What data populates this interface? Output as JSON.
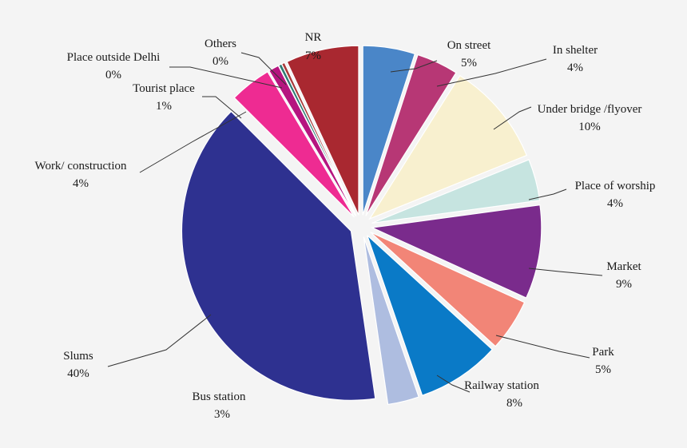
{
  "chart_data": {
    "type": "pie",
    "title": "",
    "slices": [
      {
        "name": "On street",
        "percent_label": "5%",
        "value": 5,
        "color": "#4a86c8"
      },
      {
        "name": "In shelter",
        "percent_label": "4%",
        "value": 4,
        "color": "#b73775"
      },
      {
        "name": "Under bridge /flyover",
        "percent_label": "10%",
        "value": 10,
        "color": "#f8f0cf"
      },
      {
        "name": "Place of worship",
        "percent_label": "4%",
        "value": 4,
        "color": "#c6e4e0"
      },
      {
        "name": "Market",
        "percent_label": "9%",
        "value": 9,
        "color": "#7a2b8c"
      },
      {
        "name": "Park",
        "percent_label": "5%",
        "value": 5,
        "color": "#f28577"
      },
      {
        "name": "Railway station",
        "percent_label": "8%",
        "value": 8,
        "color": "#0a7ac7"
      },
      {
        "name": "Bus station",
        "percent_label": "3%",
        "value": 3,
        "color": "#aebde0"
      },
      {
        "name": "Slums",
        "percent_label": "40%",
        "value": 40,
        "color": "#2e3190"
      },
      {
        "name": "Work/ construction",
        "percent_label": "4%",
        "value": 4,
        "color": "#ee2b92"
      },
      {
        "name": "Tourist place",
        "percent_label": "1%",
        "value": 1,
        "color": "#b5157f"
      },
      {
        "name": "Place outside Delhi",
        "percent_label": "0%",
        "value": 0.3,
        "color": "#2e7b73"
      },
      {
        "name": "Others",
        "percent_label": "0%",
        "value": 0.3,
        "color": "#aa3b3b"
      },
      {
        "name": "NR",
        "percent_label": "7%",
        "value": 7,
        "color": "#a92830"
      }
    ]
  }
}
